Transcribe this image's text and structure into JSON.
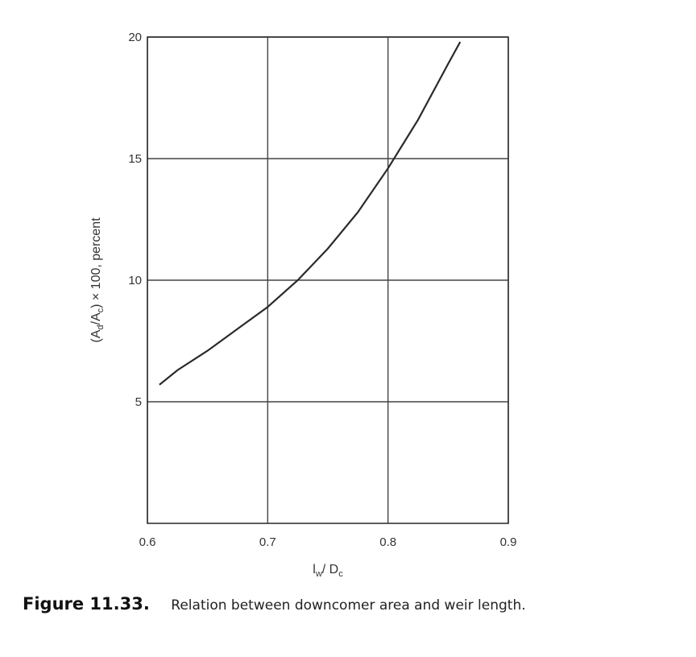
{
  "chart_data": {
    "type": "line",
    "xlabel": {
      "main": "l",
      "sub": "w",
      "after": "/ D",
      "sub2": "c"
    },
    "ylabel": {
      "p1": "(A",
      "sub1": "d",
      "p2": "/A",
      "sub2": "c",
      "p3": ") × 100, percent"
    },
    "xlim": [
      0.6,
      0.9
    ],
    "ylim": [
      0,
      20
    ],
    "xticks": [
      "0.6",
      "0.7",
      "0.8",
      "0.9"
    ],
    "yticks": [
      "5",
      "10",
      "15",
      "20"
    ],
    "grid": true,
    "series": [
      {
        "x": [
          0.61,
          0.625,
          0.65,
          0.675,
          0.7,
          0.725,
          0.75,
          0.775,
          0.8,
          0.825,
          0.85,
          0.86
        ],
        "y": [
          5.7,
          6.3,
          7.1,
          8.0,
          8.9,
          10.0,
          11.3,
          12.8,
          14.6,
          16.6,
          18.9,
          19.8
        ]
      }
    ]
  },
  "caption": {
    "label": "Figure 11.33.",
    "text": "Relation between downcomer area and weir length."
  }
}
